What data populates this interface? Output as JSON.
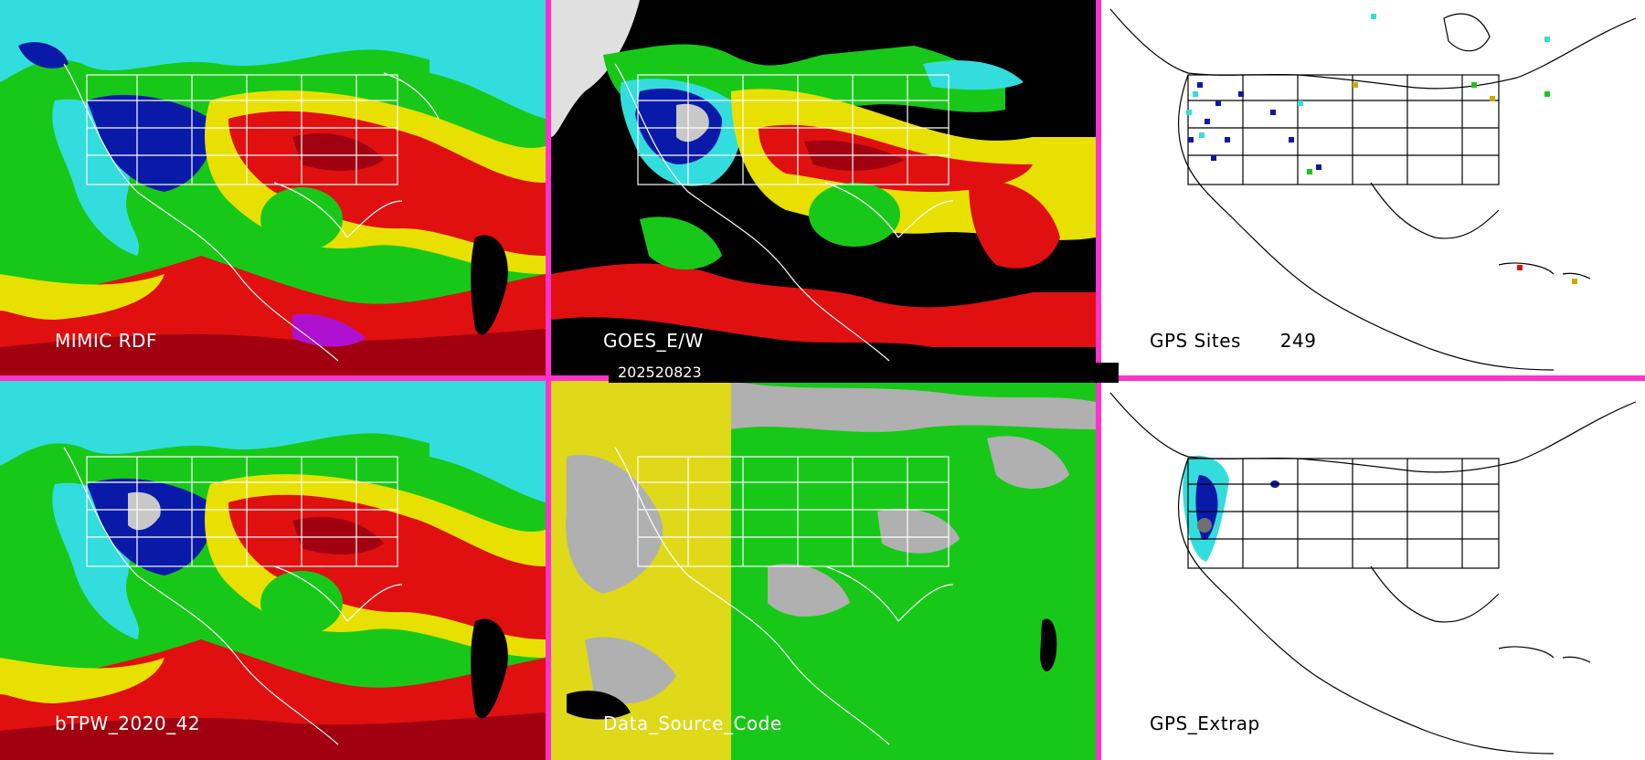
{
  "timestamp": "202520823",
  "panels": [
    {
      "id": "mimic",
      "label": "MIMIC RDF",
      "style": "tpw"
    },
    {
      "id": "goes",
      "label": "GOES_E/W",
      "style": "goes"
    },
    {
      "id": "gps",
      "label": "GPS Sites",
      "count": "249",
      "style": "white"
    },
    {
      "id": "btpw",
      "label": "bTPW_2020_42",
      "style": "tpw"
    },
    {
      "id": "dsc",
      "label": "Data_Source_Code",
      "style": "dsc"
    },
    {
      "id": "gpsx",
      "label": "GPS_Extrap",
      "style": "white"
    }
  ],
  "colors": {
    "separator": "#ff33cc",
    "ocean_green": "#18c818",
    "cyan": "#33dddd",
    "blue": "#0a1aa8",
    "red": "#e01010",
    "dark_red": "#a00010",
    "yellow": "#e8e000",
    "gray": "#b0b0b0",
    "black": "#000000",
    "magenta": "#b010d0"
  }
}
